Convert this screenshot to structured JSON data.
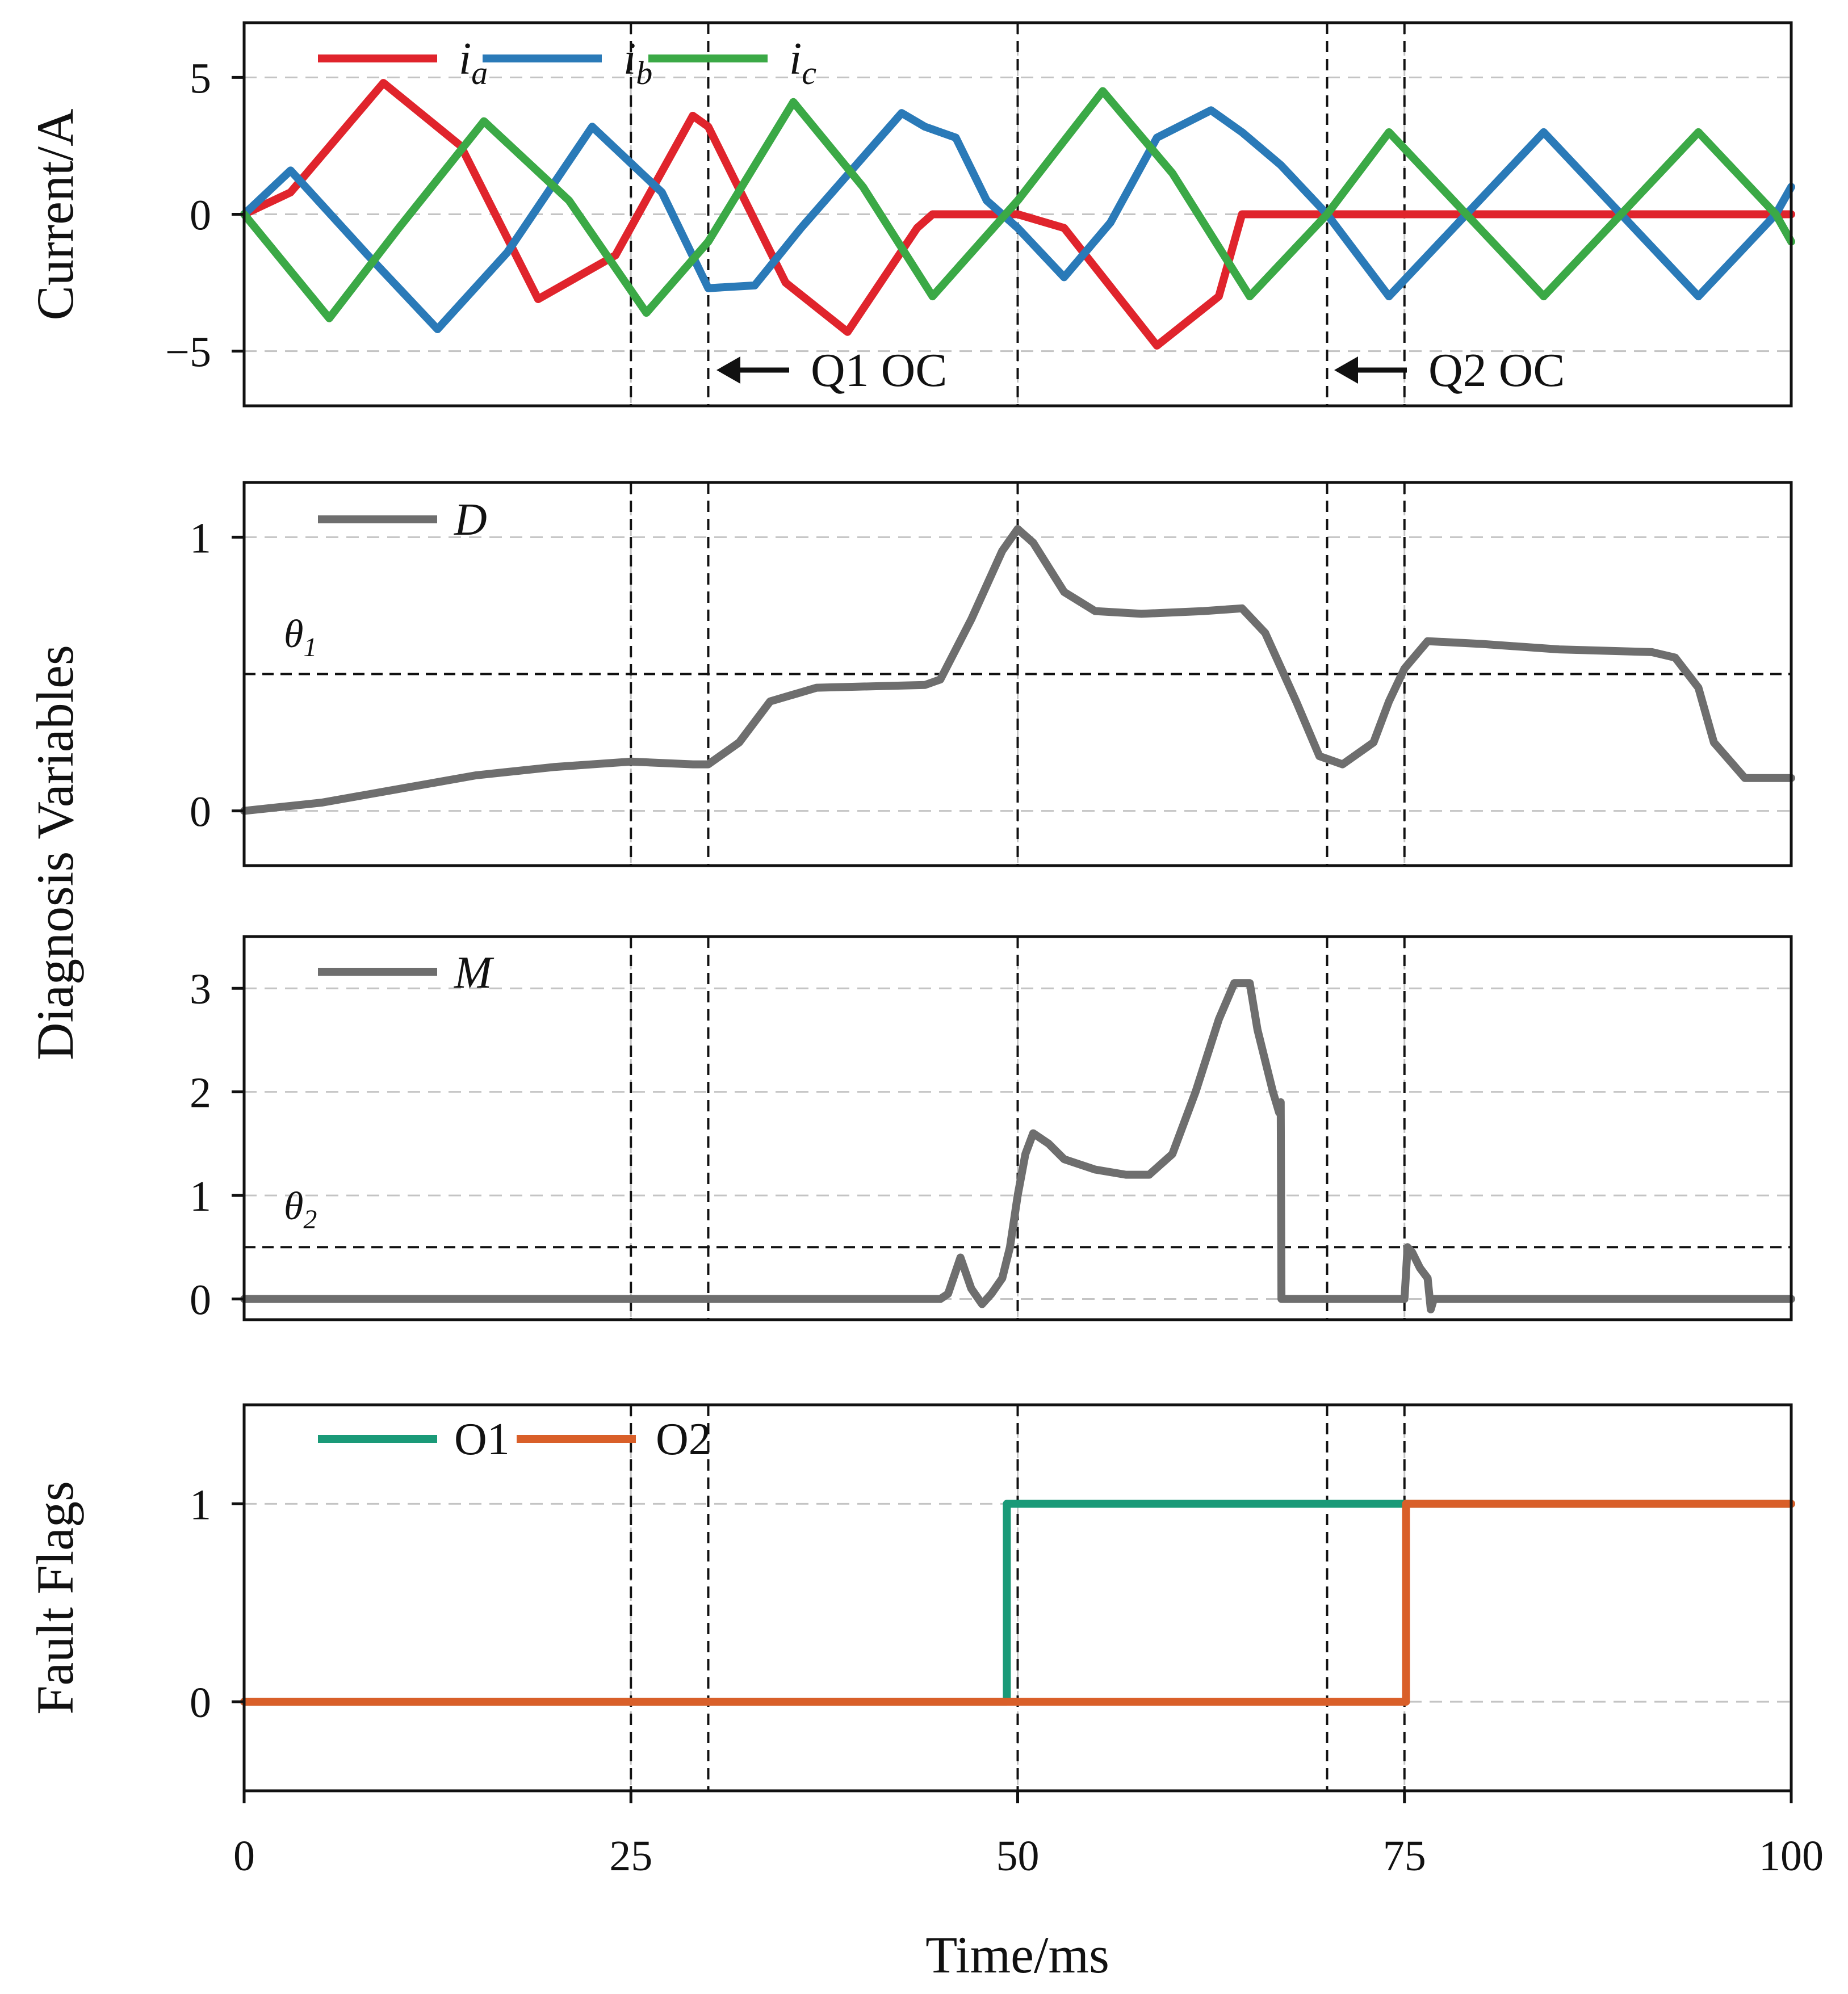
{
  "chart_data": [
    {
      "type": "line",
      "panel": "current",
      "ylabel": "Current/A",
      "ylim": [
        -7,
        7
      ],
      "yticks": [
        -5,
        0,
        5
      ],
      "ytick_labels": [
        "−5",
        "0",
        "5"
      ],
      "xlim": [
        0,
        100
      ],
      "grid": true,
      "legend_position": "top-left",
      "series": [
        {
          "name": "ia",
          "symbol": "i",
          "sub": "a",
          "color": "#e0242c",
          "x": [
            0,
            3,
            9,
            14,
            19,
            24,
            29,
            30,
            35,
            39,
            43.5,
            44.5,
            50,
            53,
            59,
            63,
            64.5,
            100
          ],
          "y": [
            0,
            0.8,
            4.8,
            2.5,
            -3.1,
            -1.5,
            3.6,
            3.2,
            -2.5,
            -4.3,
            -0.5,
            0,
            0,
            -0.5,
            -4.8,
            -3.0,
            0,
            0
          ]
        },
        {
          "name": "ib",
          "symbol": "i",
          "sub": "b",
          "color": "#2a7ab8",
          "x": [
            0,
            3,
            8,
            12.5,
            17,
            22.5,
            27,
            30,
            33,
            36,
            42.5,
            44,
            46,
            48,
            50,
            53,
            56,
            59,
            62.5,
            64.5,
            67,
            70,
            74,
            79,
            84,
            89,
            94,
            99,
            100
          ],
          "y": [
            0,
            1.6,
            -1.5,
            -4.2,
            -1.4,
            3.2,
            0.8,
            -2.7,
            -2.6,
            -0.5,
            3.7,
            3.2,
            2.8,
            0.5,
            -0.5,
            -2.3,
            -0.3,
            2.8,
            3.8,
            3.0,
            1.8,
            0,
            -3.0,
            0,
            3.0,
            0,
            -3.0,
            0,
            1.0
          ]
        },
        {
          "name": "ic",
          "symbol": "i",
          "sub": "c",
          "color": "#3ba946",
          "x": [
            0,
            5.5,
            10,
            15.5,
            21,
            26,
            30,
            35.5,
            40,
            44.5,
            50,
            55.5,
            60,
            65,
            70,
            74,
            79,
            84,
            89,
            94,
            99,
            100
          ],
          "y": [
            0,
            -3.8,
            -0.5,
            3.4,
            0.5,
            -3.6,
            -1.0,
            4.1,
            1.0,
            -3.0,
            0.5,
            4.5,
            1.5,
            -3.0,
            0,
            3.0,
            0,
            -3.0,
            0,
            3.0,
            0,
            -1.0
          ]
        }
      ],
      "vlines": [
        30,
        70
      ],
      "annotations": [
        {
          "text": "Q1 OC",
          "x": 30
        },
        {
          "text": "Q2 OC",
          "x": 70
        }
      ]
    },
    {
      "type": "line",
      "panel": "D",
      "ylim": [
        -0.2,
        1.2
      ],
      "yticks": [
        0,
        1
      ],
      "ytick_labels": [
        "0",
        "1"
      ],
      "xlim": [
        0,
        100
      ],
      "grid": true,
      "legend_position": "top-left",
      "threshold": {
        "label": "θ",
        "sub": "1",
        "value": 0.5
      },
      "series": [
        {
          "name": "D",
          "symbol": "D",
          "color": "#6e6e6e",
          "x": [
            0,
            5,
            10,
            15,
            20,
            25,
            29,
            30,
            32,
            34,
            37,
            44,
            45,
            47,
            49,
            50,
            51,
            53,
            55,
            58,
            62,
            64.5,
            66,
            68,
            69.5,
            71,
            73,
            74,
            75,
            76.5,
            80,
            85,
            91,
            92.5,
            94,
            95,
            97,
            100
          ],
          "y": [
            0,
            0.03,
            0.08,
            0.13,
            0.16,
            0.18,
            0.17,
            0.17,
            0.25,
            0.4,
            0.45,
            0.46,
            0.48,
            0.7,
            0.95,
            1.03,
            0.98,
            0.8,
            0.73,
            0.72,
            0.73,
            0.74,
            0.65,
            0.4,
            0.2,
            0.17,
            0.25,
            0.4,
            0.52,
            0.62,
            0.61,
            0.59,
            0.58,
            0.56,
            0.45,
            0.25,
            0.12,
            0.12
          ]
        }
      ]
    },
    {
      "type": "line",
      "panel": "M",
      "ylim": [
        -0.2,
        3.5
      ],
      "yticks": [
        0,
        1,
        2,
        3
      ],
      "ytick_labels": [
        "0",
        "1",
        "2",
        "3"
      ],
      "xlim": [
        0,
        100
      ],
      "grid": true,
      "legend_position": "top-left",
      "threshold": {
        "label": "θ",
        "sub": "2",
        "value": 0.5
      },
      "series": [
        {
          "name": "M",
          "symbol": "M",
          "color": "#6e6e6e",
          "x": [
            0,
            45,
            45.5,
            46.3,
            47,
            47.7,
            48.3,
            49,
            49.5,
            50,
            50.5,
            51,
            52,
            53,
            55,
            57,
            58.5,
            60,
            61.5,
            63,
            64,
            65,
            65.5,
            66,
            66.5,
            66.9,
            67,
            67.05,
            74,
            75,
            75.2,
            75.5,
            76,
            76.5,
            76.7,
            76.9,
            77,
            100
          ],
          "y": [
            0,
            0,
            0.05,
            0.4,
            0.1,
            -0.05,
            0.05,
            0.2,
            0.5,
            1.0,
            1.4,
            1.6,
            1.5,
            1.35,
            1.25,
            1.2,
            1.2,
            1.4,
            2.0,
            2.7,
            3.05,
            3.05,
            2.6,
            2.3,
            2.0,
            1.8,
            1.9,
            0,
            0,
            0,
            0.5,
            0.45,
            0.3,
            0.2,
            -0.1,
            0,
            0,
            0
          ]
        }
      ]
    },
    {
      "type": "line",
      "panel": "flags",
      "ylabel": "Fault Flags",
      "ylim": [
        -0.45,
        1.5
      ],
      "yticks": [
        0,
        1
      ],
      "ytick_labels": [
        "0",
        "1"
      ],
      "xlim": [
        0,
        100
      ],
      "xticks": [
        0,
        25,
        50,
        75,
        100
      ],
      "xtick_labels": [
        "0",
        "25",
        "50",
        "75",
        "100"
      ],
      "xlabel": "Time/ms",
      "grid": true,
      "legend_position": "top-left",
      "series": [
        {
          "name": "O1",
          "color": "#1a9a78",
          "x": [
            0,
            49.3,
            49.3,
            75.1,
            75.1,
            100
          ],
          "y": [
            0,
            0,
            1,
            1,
            1,
            1
          ]
        },
        {
          "name": "O2",
          "color": "#d95f29",
          "x": [
            0,
            75.1,
            75.1,
            100
          ],
          "y": [
            0,
            0,
            1,
            1
          ]
        }
      ]
    }
  ],
  "shared": {
    "ylabel_middle": "Diagnosis Variables",
    "xlim": [
      0,
      100
    ]
  }
}
